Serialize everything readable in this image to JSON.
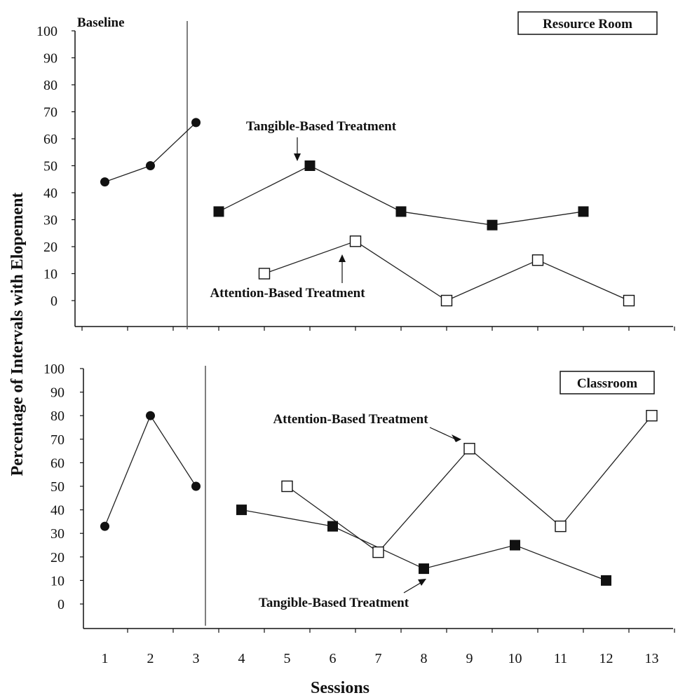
{
  "axis": {
    "ylabel": "Percentage of Intervals with Elopement",
    "xlabel": "Sessions",
    "y_ticks": [
      "100",
      "90",
      "80",
      "70",
      "60",
      "50",
      "40",
      "30",
      "20",
      "10",
      "0"
    ],
    "x_ticks": [
      "1",
      "2",
      "3",
      "4",
      "5",
      "6",
      "7",
      "8",
      "9",
      "10",
      "11",
      "12",
      "13"
    ]
  },
  "chart_data": [
    {
      "type": "line",
      "title": "Resource Room",
      "phase_label": "Baseline",
      "xlabel": "",
      "ylabel": "Percentage of Intervals with Elopement",
      "ylim": [
        0,
        100
      ],
      "grid": false,
      "series": [
        {
          "role": "baseline",
          "marker": "filled-circle",
          "points": [
            [
              1,
              44
            ],
            [
              2,
              50
            ],
            [
              3,
              66
            ]
          ]
        },
        {
          "role": "tangible",
          "marker": "filled-square",
          "points": [
            [
              3.5,
              33
            ],
            [
              5.5,
              50
            ],
            [
              7.5,
              33
            ],
            [
              9.5,
              28
            ],
            [
              11.5,
              33
            ]
          ]
        },
        {
          "role": "attention",
          "marker": "open-square",
          "points": [
            [
              4.5,
              10
            ],
            [
              6.5,
              22
            ],
            [
              8.5,
              0
            ],
            [
              10.5,
              15
            ],
            [
              12.5,
              0
            ]
          ]
        }
      ],
      "annotations": {
        "tangible": "Tangible-Based Treatment",
        "attention": "Attention-Based Treatment"
      }
    },
    {
      "type": "line",
      "title": "Classroom",
      "xlabel": "Sessions",
      "ylabel": "Percentage of Intervals with Elopement",
      "ylim": [
        0,
        100
      ],
      "grid": false,
      "series": [
        {
          "role": "baseline",
          "marker": "filled-circle",
          "points": [
            [
              1,
              33
            ],
            [
              2,
              80
            ],
            [
              3,
              50
            ]
          ]
        },
        {
          "role": "tangible",
          "marker": "filled-square",
          "points": [
            [
              4,
              40
            ],
            [
              6,
              33
            ],
            [
              8,
              15
            ],
            [
              10,
              25
            ],
            [
              12,
              10
            ]
          ]
        },
        {
          "role": "attention",
          "marker": "open-square",
          "points": [
            [
              5,
              50
            ],
            [
              7,
              22
            ],
            [
              9,
              66
            ],
            [
              11,
              33
            ],
            [
              13,
              80
            ]
          ]
        }
      ],
      "annotations": {
        "attention": "Attention-Based Treatment",
        "tangible": "Tangible-Based Treatment"
      }
    }
  ]
}
